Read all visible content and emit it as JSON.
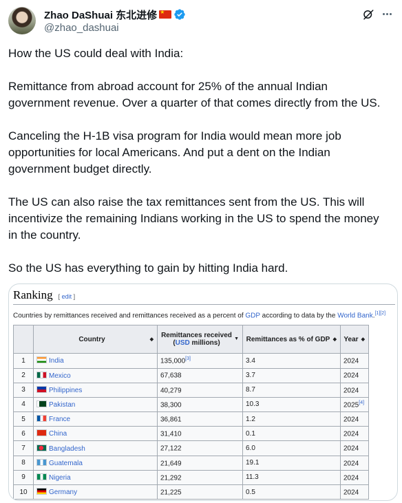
{
  "author": {
    "display_name": "Zhao DaShuai 东北进修",
    "handle": "@zhao_dashuai"
  },
  "tweet": {
    "paragraphs": [
      [
        "How the US could deal with India:"
      ],
      [
        "Remittance from abroad account for 25% of the annual Indian",
        "government revenue. Over a quarter of that comes directly from the US."
      ],
      [
        "Canceling the H-1B visa program for India would mean more job",
        "opportunities for local Americans. And put a dent on the Indian",
        "government budget directly."
      ],
      [
        "The US can also raise the tax remittances sent from the US. This will",
        "incentivize the remaining Indians working in the US to spend the money",
        "in the country."
      ],
      [
        "So the US has everything to gain by hitting India hard."
      ]
    ]
  },
  "wiki": {
    "title": "Ranking",
    "edit_label": "edit",
    "caption_parts": {
      "pre": "Countries by remittances received and remittances received as a percent of ",
      "gdp_link": "GDP",
      "mid": " according to data by the ",
      "wb_link": "World Bank",
      "post": ".",
      "refs": "[1][2]"
    },
    "headers": {
      "country": "Country",
      "remit_line1": "Remittances received",
      "remit_usd": "USD",
      "remit_rest": " millions)",
      "remit_open": "(",
      "pct": "Remittances as % of GDP",
      "year": "Year"
    },
    "rows": [
      {
        "rank": "1",
        "country": "India",
        "remit": "135,000",
        "remit_ref": "[3]",
        "pct": "3.4",
        "year": "2024",
        "year_ref": "",
        "flag": "in"
      },
      {
        "rank": "2",
        "country": "Mexico",
        "remit": "67,638",
        "remit_ref": "",
        "pct": "3.7",
        "year": "2024",
        "year_ref": "",
        "flag": "mx"
      },
      {
        "rank": "3",
        "country": "Philippines",
        "remit": "40,279",
        "remit_ref": "",
        "pct": "8.7",
        "year": "2024",
        "year_ref": "",
        "flag": "ph"
      },
      {
        "rank": "4",
        "country": "Pakistan",
        "remit": "38,300",
        "remit_ref": "",
        "pct": "10.3",
        "year": "2025",
        "year_ref": "[4]",
        "flag": "pk"
      },
      {
        "rank": "5",
        "country": "France",
        "remit": "36,861",
        "remit_ref": "",
        "pct": "1.2",
        "year": "2024",
        "year_ref": "",
        "flag": "fr"
      },
      {
        "rank": "6",
        "country": "China",
        "remit": "31,410",
        "remit_ref": "",
        "pct": "0.1",
        "year": "2024",
        "year_ref": "",
        "flag": "cn"
      },
      {
        "rank": "7",
        "country": "Bangladesh",
        "remit": "27,122",
        "remit_ref": "",
        "pct": "6.0",
        "year": "2024",
        "year_ref": "",
        "flag": "bd"
      },
      {
        "rank": "8",
        "country": "Guatemala",
        "remit": "21,649",
        "remit_ref": "",
        "pct": "19.1",
        "year": "2024",
        "year_ref": "",
        "flag": "gt"
      },
      {
        "rank": "9",
        "country": "Nigeria",
        "remit": "21,292",
        "remit_ref": "",
        "pct": "11.3",
        "year": "2024",
        "year_ref": "",
        "flag": "ng"
      },
      {
        "rank": "10",
        "country": "Germany",
        "remit": "21,225",
        "remit_ref": "",
        "pct": "0.5",
        "year": "2024",
        "year_ref": "",
        "flag": "de"
      }
    ]
  },
  "colors": {
    "link": "#3366cc",
    "verified": "#1d9bf0",
    "handle": "#536471"
  }
}
